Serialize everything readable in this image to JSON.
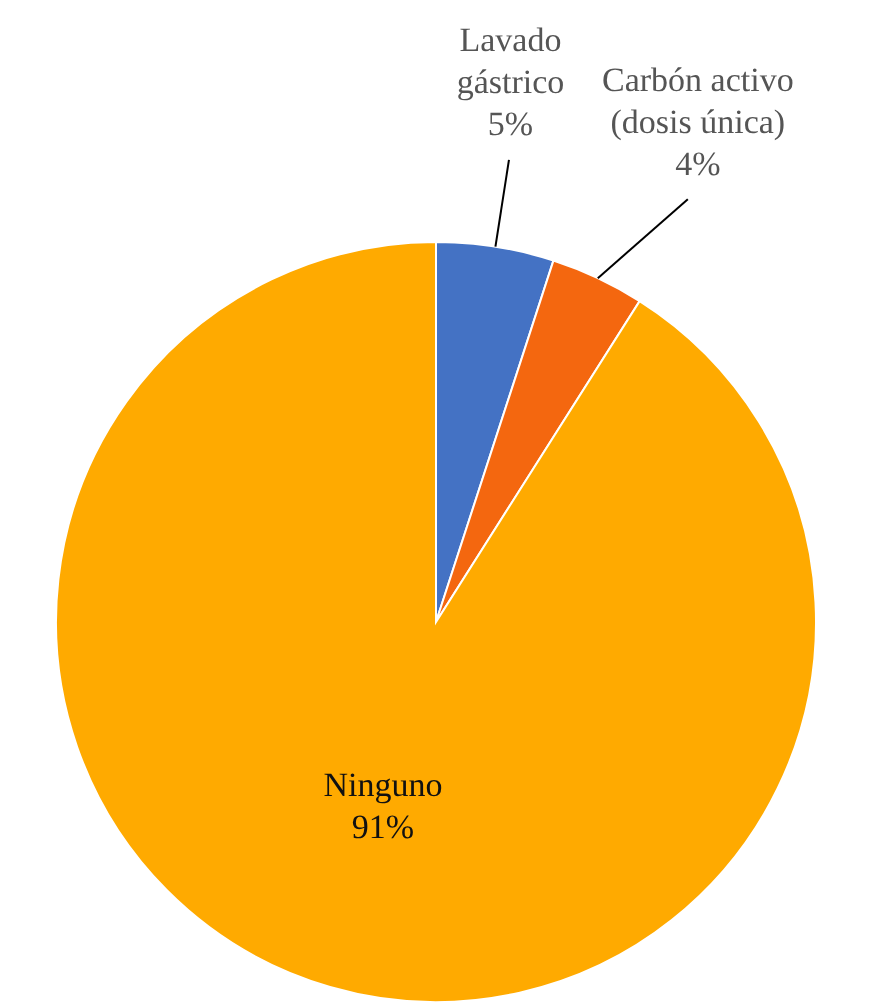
{
  "chart_data": {
    "type": "pie",
    "categories": [
      "Lavado gástrico",
      "Carbón activo (dosis única)",
      "Ninguno"
    ],
    "values": [
      5,
      4,
      91
    ],
    "colors": [
      "#4472c4",
      "#f4670f",
      "#ffaa00"
    ],
    "value_labels": [
      "5%",
      "4%",
      "91%"
    ]
  }
}
